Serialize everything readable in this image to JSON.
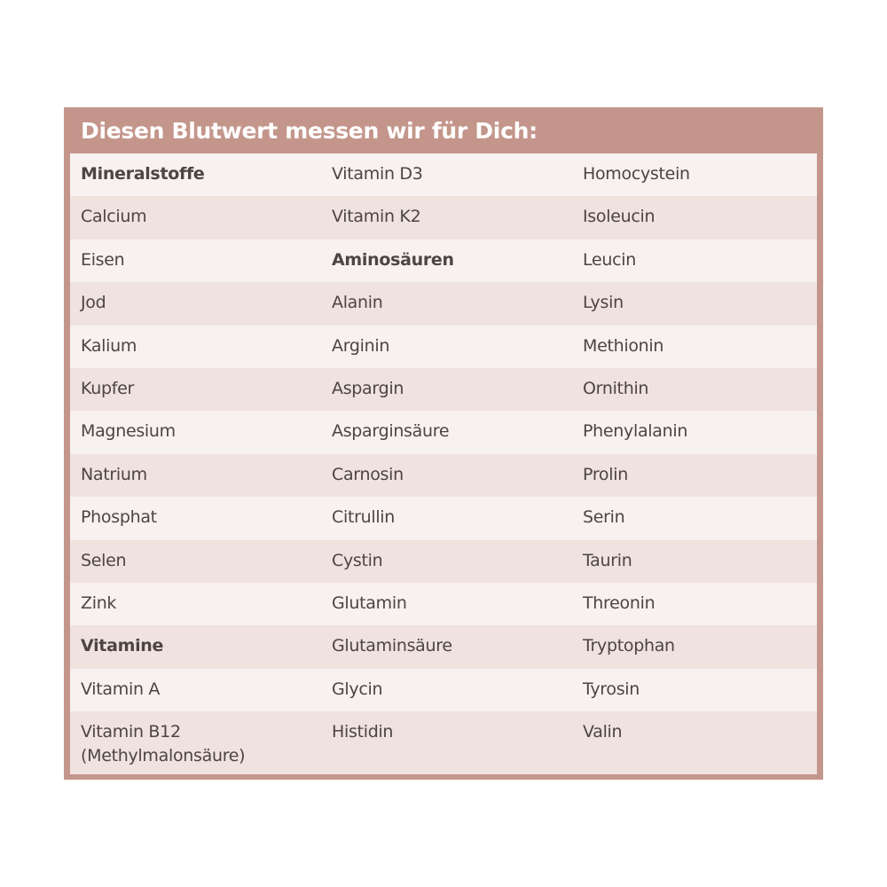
{
  "title": "Diesen Blutwert messen wir für Dich:",
  "colors": {
    "frame": "#c4968b",
    "row_light": "#f7f1ef",
    "row_dark": "#efe2df",
    "text": "#4d4444"
  },
  "rows": [
    [
      {
        "t": "Mineralstoffe",
        "bold": true
      },
      {
        "t": "Vitamin D3"
      },
      {
        "t": "Homocystein"
      }
    ],
    [
      {
        "t": "Calcium"
      },
      {
        "t": "Vitamin K2"
      },
      {
        "t": "Isoleucin"
      }
    ],
    [
      {
        "t": "Eisen"
      },
      {
        "t": "Aminosäuren",
        "bold": true
      },
      {
        "t": "Leucin"
      }
    ],
    [
      {
        "t": "Jod"
      },
      {
        "t": "Alanin"
      },
      {
        "t": "Lysin"
      }
    ],
    [
      {
        "t": "Kalium"
      },
      {
        "t": "Arginin"
      },
      {
        "t": "Methionin"
      }
    ],
    [
      {
        "t": "Kupfer"
      },
      {
        "t": "Aspargin"
      },
      {
        "t": "Ornithin"
      }
    ],
    [
      {
        "t": "Magnesium"
      },
      {
        "t": "Asparginsäure"
      },
      {
        "t": "Phenylalanin"
      }
    ],
    [
      {
        "t": "Natrium"
      },
      {
        "t": "Carnosin"
      },
      {
        "t": "Prolin"
      }
    ],
    [
      {
        "t": "Phosphat"
      },
      {
        "t": "Citrullin"
      },
      {
        "t": "Serin"
      }
    ],
    [
      {
        "t": "Selen"
      },
      {
        "t": "Cystin"
      },
      {
        "t": "Taurin"
      }
    ],
    [
      {
        "t": "Zink"
      },
      {
        "t": "Glutamin"
      },
      {
        "t": "Threonin"
      }
    ],
    [
      {
        "t": "Vitamine",
        "bold": true
      },
      {
        "t": "Glutaminsäure"
      },
      {
        "t": "Tryptophan"
      }
    ],
    [
      {
        "t": "Vitamin A"
      },
      {
        "t": "Glycin"
      },
      {
        "t": "Tyrosin"
      }
    ],
    [
      {
        "t": "Vitamin B12\n(Methylmalonsäure)"
      },
      {
        "t": "Histidin"
      },
      {
        "t": "Valin"
      }
    ]
  ]
}
